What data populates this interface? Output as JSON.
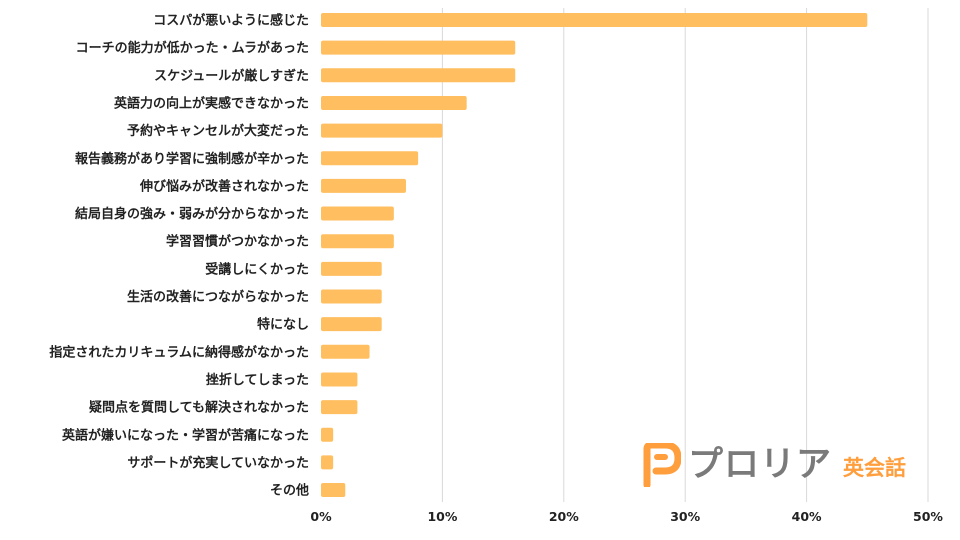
{
  "chart_data": {
    "type": "bar",
    "orientation": "horizontal",
    "categories": [
      "コスパが悪いように感じた",
      "コーチの能力が低かった・ムラがあった",
      "スケジュールが厳しすぎた",
      "英語力の向上が実感できなかった",
      "予約やキャンセルが大変だった",
      "報告義務があり学習に強制感が辛かった",
      "伸び悩みが改善されなかった",
      "結局自身の強み・弱みが分からなかった",
      "学習習慣がつかなかった",
      "受講しにくかった",
      "生活の改善につながらなかった",
      "特になし",
      "指定されたカリキュラムに納得感がなかった",
      "挫折してしまった",
      "疑問点を質問しても解決されなかった",
      "英語が嫌いになった・学習が苦痛になった",
      "サポートが充実していなかった",
      "その他"
    ],
    "values": [
      45,
      16,
      16,
      12,
      10,
      8,
      7,
      6,
      6,
      5,
      5,
      5,
      4,
      3,
      3,
      1,
      1,
      2
    ],
    "xlim": [
      0,
      50
    ],
    "xticks": [
      0,
      10,
      20,
      30,
      40,
      50
    ],
    "tick_suffix": "%",
    "bar_color": "#ffbf60",
    "grid": true
  },
  "logo": {
    "name": "プロリア",
    "sub": "英会話",
    "accent_color": "#ff9e3d",
    "name_color": "#7a7a7a",
    "icon": "proria-p-logo-icon"
  }
}
